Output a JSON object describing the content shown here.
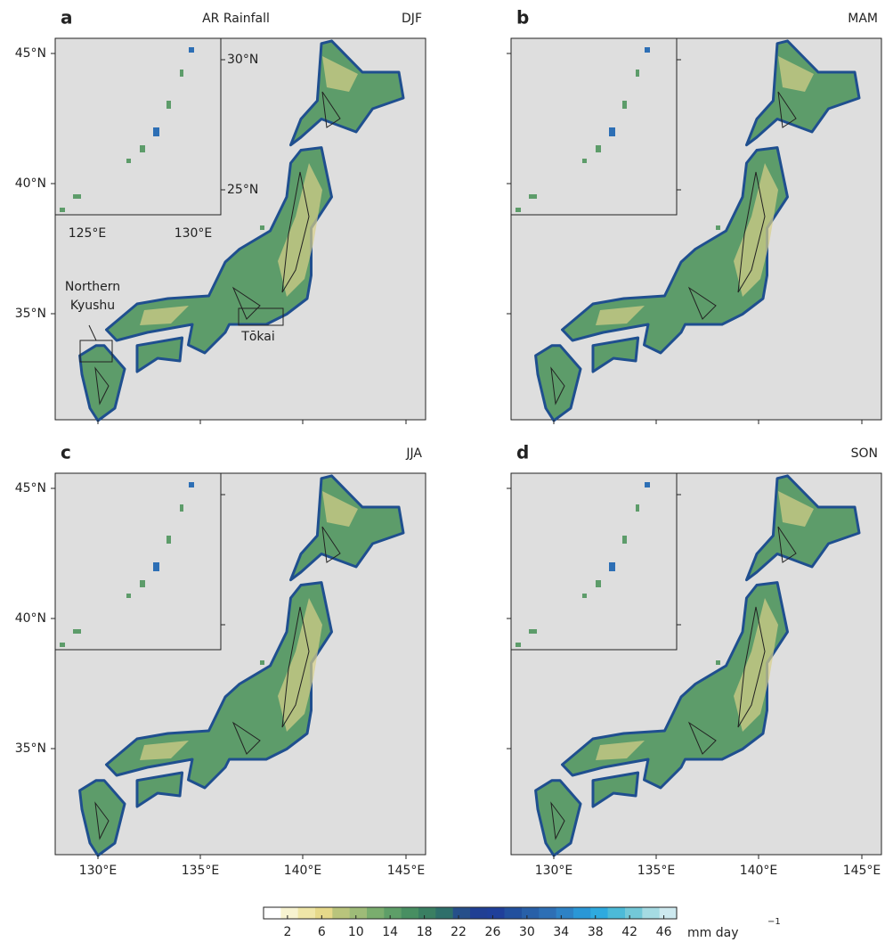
{
  "title": "AR Rainfall",
  "panels": [
    {
      "letter": "a",
      "season": "DJF"
    },
    {
      "letter": "b",
      "season": "MAM"
    },
    {
      "letter": "c",
      "season": "JJA"
    },
    {
      "letter": "d",
      "season": "SON"
    }
  ],
  "lat_labels": [
    "45°N",
    "40°N",
    "35°N"
  ],
  "lon_labels": [
    "130°E",
    "135°E",
    "140°E",
    "145°E"
  ],
  "inset": {
    "lat_labels": [
      "30°N",
      "25°N"
    ],
    "lon_labels": [
      "125°E",
      "130°E"
    ]
  },
  "regions": {
    "northern_kyushu": [
      "Northern",
      "Kyushu"
    ],
    "tokai": "Tōkai"
  },
  "colorbar": {
    "ticks": [
      2,
      6,
      10,
      14,
      18,
      22,
      26,
      30,
      34,
      38,
      42,
      46
    ],
    "range": [
      -0.8,
      47.5
    ],
    "colors": [
      "#ffffff",
      "#f7f3d0",
      "#efe6a8",
      "#e6d98a",
      "#b9c47c",
      "#9ebb78",
      "#7aad6e",
      "#5e9e68",
      "#488f62",
      "#3a7f62",
      "#2e6f6a",
      "#264f8a",
      "#203f94",
      "#1f3f9a",
      "#22509e",
      "#2860a8",
      "#2d6fb5",
      "#2d82c5",
      "#2a97d6",
      "#2eaadf",
      "#4cbad8",
      "#73c8d8",
      "#a5dbe3",
      "#cde9ef"
    ],
    "unit": "mm day",
    "unit_exponent": "−1"
  }
}
